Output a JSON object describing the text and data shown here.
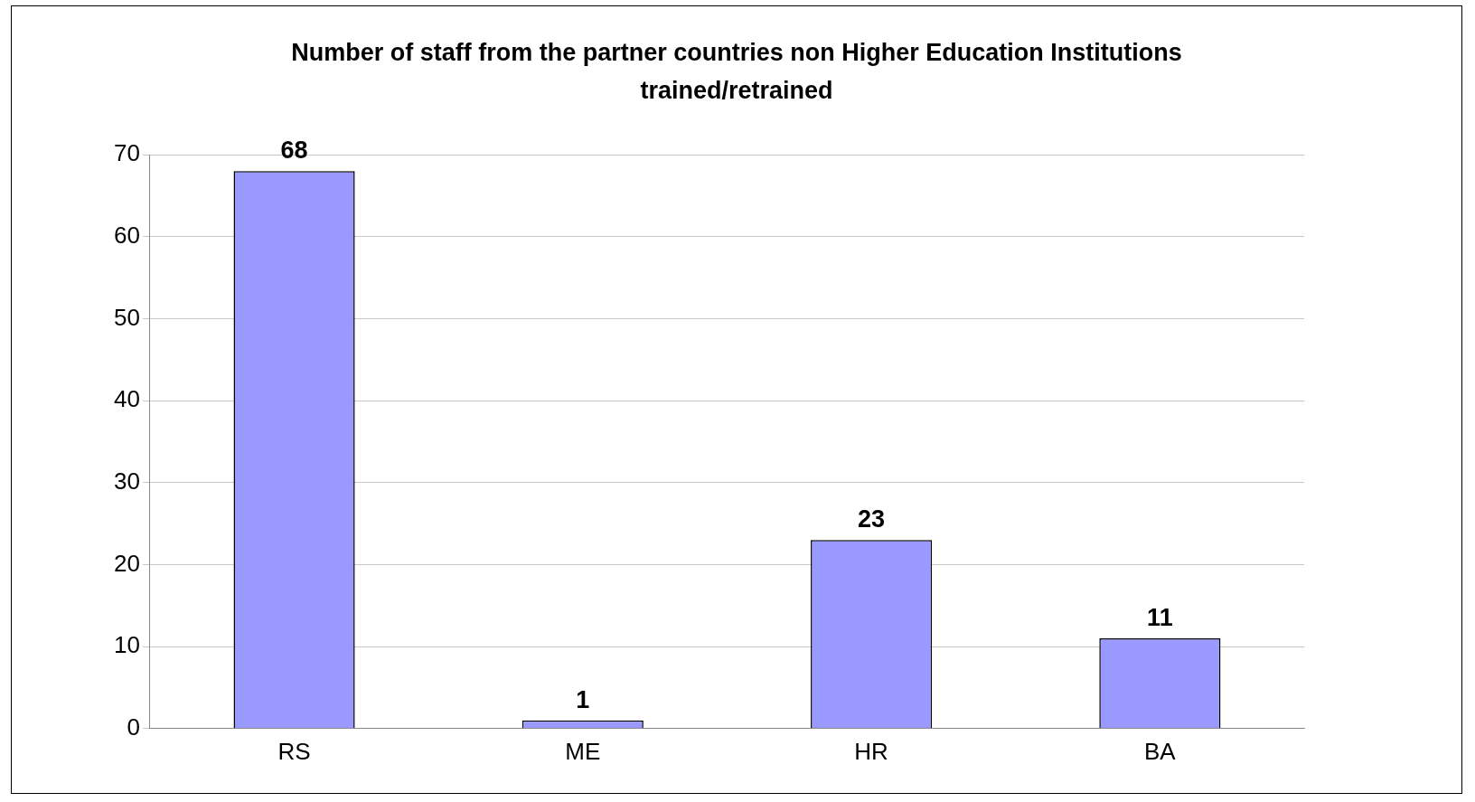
{
  "chart_data": {
    "type": "bar",
    "title": "Number of staff from the partner countries non Higher Education Institutions trained/retrained",
    "categories": [
      "RS",
      "ME",
      "HR",
      "BA"
    ],
    "values": [
      68,
      1,
      23,
      11
    ],
    "color": "#9999ff",
    "ylim": [
      0,
      70
    ],
    "yticks": [
      0,
      10,
      20,
      30,
      40,
      50,
      60,
      70
    ],
    "grid": "y",
    "data_labels": true
  }
}
